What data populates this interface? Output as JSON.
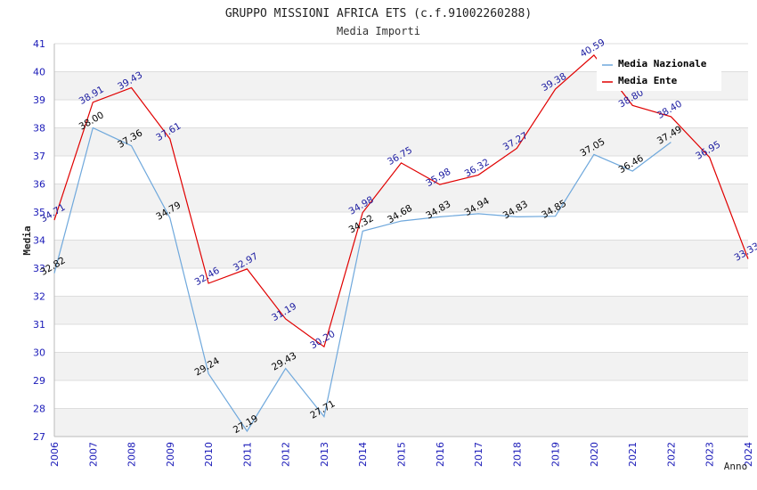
{
  "chart_data": {
    "type": "line",
    "title": "GRUPPO MISSIONI AFRICA ETS (c.f.91002260288)",
    "subtitle": "Media Importi",
    "xlabel": "Anno",
    "ylabel": "Media",
    "ylim": [
      27,
      41
    ],
    "yticks": [
      "27",
      "28",
      "29",
      "30",
      "31",
      "32",
      "33",
      "34",
      "35",
      "36",
      "37",
      "38",
      "39",
      "40",
      "41"
    ],
    "categories": [
      "2006",
      "2007",
      "2008",
      "2009",
      "2010",
      "2011",
      "2012",
      "2013",
      "2014",
      "2015",
      "2016",
      "2017",
      "2018",
      "2019",
      "2020",
      "2021",
      "2022",
      "2023",
      "2024"
    ],
    "legend_position": "top-right",
    "series": [
      {
        "name": "Media Nazionale",
        "color": "#6fa8dc",
        "label_color": "#000000",
        "values": [
          32.82,
          38.0,
          37.36,
          34.79,
          29.24,
          27.19,
          29.43,
          27.71,
          34.32,
          34.68,
          34.83,
          34.94,
          34.83,
          34.85,
          37.05,
          36.46,
          37.49,
          null,
          null
        ],
        "labels": [
          "32.82",
          "38.00",
          "37.36",
          "34.79",
          "29.24",
          "27.19",
          "29.43",
          "27.71",
          "34.32",
          "34.68",
          "34.83",
          "34.94",
          "34.83",
          "34.85",
          "37.05",
          "36.46",
          "37.49",
          null,
          null
        ]
      },
      {
        "name": "Media Ente",
        "color": "#e00000",
        "label_color": "#1a1aa0",
        "values": [
          34.71,
          38.91,
          39.43,
          37.61,
          32.46,
          32.97,
          31.19,
          30.2,
          34.98,
          36.75,
          35.98,
          36.32,
          37.27,
          39.38,
          40.59,
          38.8,
          38.4,
          36.95,
          33.33
        ],
        "labels": [
          "34.71",
          "38.91",
          "39.43",
          "37.61",
          "32.46",
          "32.97",
          "31.19",
          "30.20",
          "34.98",
          "36.75",
          "35.98",
          "36.32",
          "37.27",
          "39.38",
          "40.59",
          "38.80",
          "38.40",
          "36.95",
          "33.33"
        ]
      }
    ]
  }
}
